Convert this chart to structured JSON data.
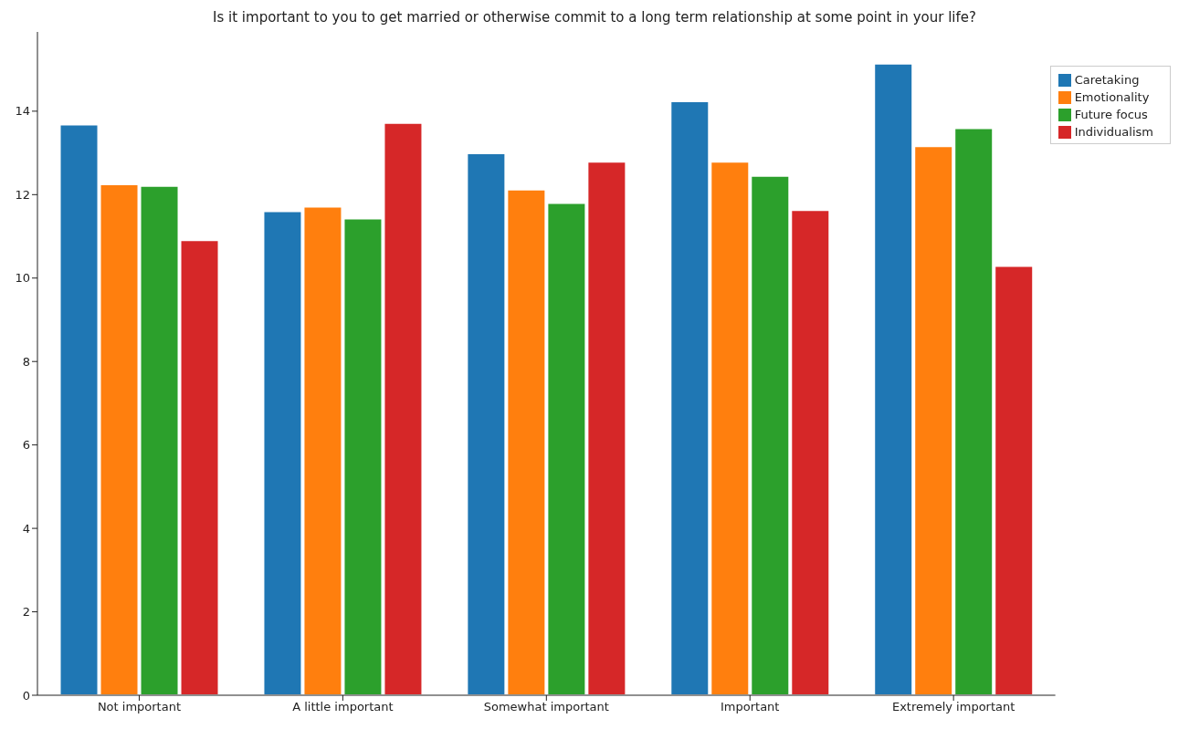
{
  "chart_data": {
    "type": "bar",
    "title": "Is it important to you to get married or otherwise commit to a long term relationship at some point in your life?",
    "categories": [
      "Not important",
      "A little important",
      "Somewhat important",
      "Important",
      "Extremely important"
    ],
    "series": [
      {
        "name": "Caretaking",
        "color": "#1f77b4",
        "values": [
          13.68,
          11.6,
          12.99,
          14.24,
          15.14
        ]
      },
      {
        "name": "Emotionality",
        "color": "#ff7f0e",
        "values": [
          12.25,
          11.71,
          12.12,
          12.79,
          13.16
        ]
      },
      {
        "name": "Future focus",
        "color": "#2ca02c",
        "values": [
          12.21,
          11.43,
          11.8,
          12.45,
          13.59
        ]
      },
      {
        "name": "Individualism",
        "color": "#d62728",
        "values": [
          10.91,
          13.72,
          12.79,
          11.63,
          10.29
        ]
      }
    ],
    "ylim": [
      0,
      15.9
    ],
    "yticks": [
      0,
      2,
      4,
      6,
      8,
      10,
      12,
      14
    ],
    "grid": false,
    "legend": "top right"
  }
}
